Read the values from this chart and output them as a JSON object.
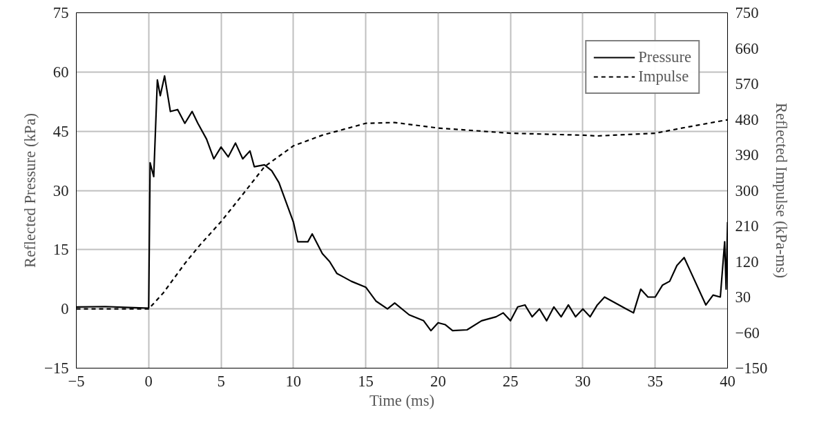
{
  "chart_data": {
    "type": "line",
    "xlabel": "Time (ms)",
    "ylabel": "Reflected Pressure (kPa)",
    "y2label": "Reflected Impulse (kPa-ms)",
    "xlim": [
      -5,
      40
    ],
    "xticks": [
      -5,
      0,
      5,
      10,
      15,
      20,
      25,
      30,
      35,
      40
    ],
    "ylim": [
      -15,
      75
    ],
    "yticks": [
      -15,
      0,
      15,
      30,
      45,
      60,
      75
    ],
    "y2lim": [
      -150,
      750
    ],
    "y2ticks": [
      -150,
      -60,
      30,
      120,
      210,
      300,
      390,
      480,
      570,
      660,
      750
    ],
    "grid": true,
    "legend": "top right",
    "series": [
      {
        "name": "Pressure",
        "color": "#000000",
        "line_style": "solid",
        "x": [
          -5,
          -3,
          -1,
          0,
          0.1,
          0.35,
          0.6,
          0.8,
          1.1,
          1.5,
          2,
          2.5,
          3,
          3.4,
          4,
          4.5,
          5,
          5.5,
          6,
          6.5,
          7,
          7.3,
          8,
          8.5,
          9,
          10,
          10.3,
          11,
          11.3,
          12,
          12.5,
          13,
          13.5,
          14,
          15,
          15.7,
          16.5,
          17,
          18,
          19,
          19.5,
          20,
          20.5,
          21,
          22,
          23,
          24,
          24.5,
          25,
          25.5,
          26,
          26.5,
          27,
          27.5,
          28,
          28.5,
          29,
          29.5,
          30,
          30.5,
          31,
          31.5,
          32,
          33,
          33.5,
          34,
          34.5,
          35,
          35.5,
          36,
          36.5,
          37,
          37.5,
          38,
          38.5,
          39,
          39.5,
          39.8,
          39.9,
          40
        ],
        "values": [
          0.5,
          0.6,
          0.3,
          0.2,
          37,
          33.5,
          58,
          54,
          59,
          50,
          50.5,
          47,
          50,
          47,
          43,
          38,
          41,
          38.5,
          42,
          38,
          40,
          36,
          36.5,
          35,
          32,
          22,
          17,
          17,
          19,
          14,
          12,
          9,
          8,
          7,
          5.5,
          2,
          0,
          1.5,
          -1.5,
          -3,
          -5.5,
          -3.5,
          -4,
          -5.5,
          -5.3,
          -3,
          -2,
          -1,
          -3,
          0.5,
          1,
          -2,
          0,
          -3,
          0.5,
          -2,
          1,
          -2,
          0,
          -2,
          1,
          3,
          2,
          0,
          -1,
          5,
          3,
          3,
          6,
          7,
          11,
          13,
          9,
          5,
          1,
          3.5,
          3,
          17,
          5,
          22
        ]
      },
      {
        "name": "Impulse",
        "color": "#000000",
        "line_style": "dashed",
        "axis": "y2",
        "x": [
          -5,
          0,
          1,
          2.5,
          3.5,
          5,
          6.5,
          8,
          10,
          12,
          15,
          17,
          20,
          25,
          30,
          31,
          35,
          37,
          40
        ],
        "values": [
          0,
          0,
          40,
          115,
          160,
          221,
          290,
          360,
          413,
          440,
          470,
          472,
          458,
          445,
          440,
          438,
          445,
          459,
          479
        ]
      }
    ]
  }
}
